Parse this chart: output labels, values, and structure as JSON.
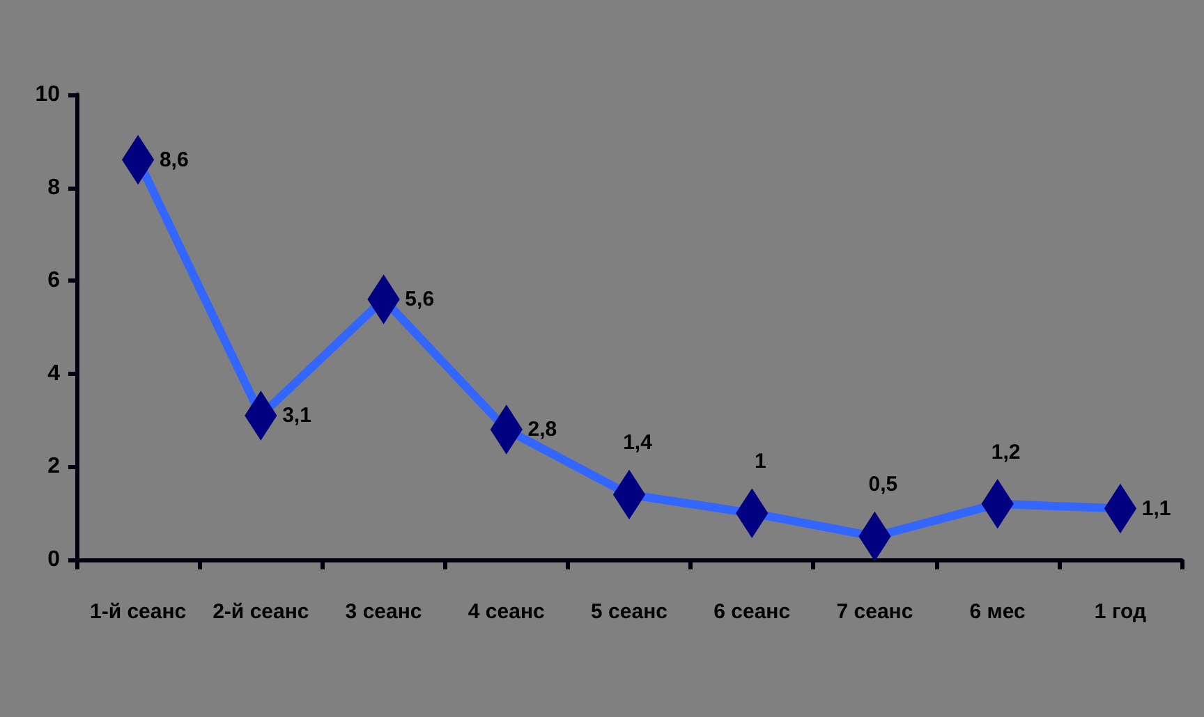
{
  "chart_data": {
    "type": "line",
    "categories": [
      "1-й сеанс",
      "2-й сеанс",
      "3 сеанс",
      "4 сеанс",
      "5 сеанс",
      "6 сеанс",
      "7 сеанс",
      "6 мес",
      "1 год"
    ],
    "series": [
      {
        "color": "#3366ff",
        "colors": [
          "#000080",
          "#000080",
          "#000080",
          "#000080",
          "#000080",
          "#000080",
          "#000080",
          "#000080",
          "#000080"
        ],
        "values": [
          8.6,
          3.1,
          5.6,
          2.8,
          1.4,
          1,
          0.5,
          1.2,
          1.1
        ],
        "value_labels": [
          "8,6",
          "3,1",
          "5,6",
          "2,8",
          "1,4",
          "1",
          "0,5",
          "1,2",
          "1,1"
        ]
      }
    ],
    "ylim": [
      0,
      10
    ],
    "yticks": [
      0,
      2,
      4,
      6,
      8,
      10
    ],
    "grid": false,
    "marker": "diamond",
    "line_style": "solid"
  }
}
